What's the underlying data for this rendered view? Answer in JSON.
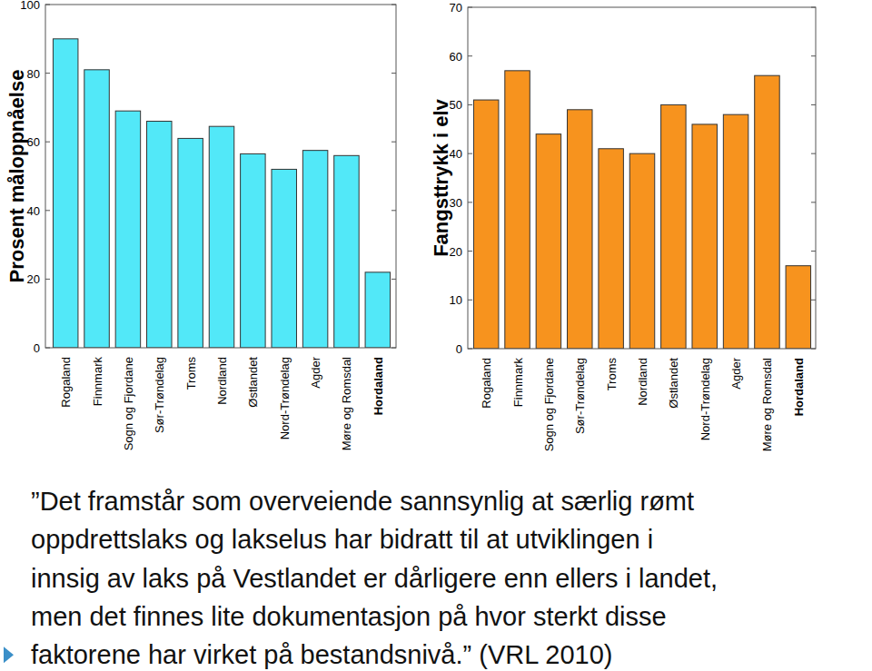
{
  "chart_data": [
    {
      "type": "bar",
      "y_label": "Prosent måloppnåelse",
      "categories": [
        "Rogaland",
        "Finnmark",
        "Sogn og Fjordane",
        "Sør-Trøndelag",
        "Troms",
        "Nordland",
        "Østlandet",
        "Nord-Trøndelag",
        "Agder",
        "Møre og Romsdal",
        "Hordaland"
      ],
      "values": [
        90,
        81,
        69,
        66,
        61,
        64.5,
        56.5,
        52,
        57.5,
        56,
        22
      ],
      "color": "#52e8f8",
      "ylim": [
        0,
        100
      ],
      "yticks": [
        0,
        20,
        40,
        60,
        80,
        100
      ],
      "grid": false
    },
    {
      "type": "bar",
      "y_label": "Fangsttrykk i elv",
      "categories": [
        "Rogaland",
        "Finnmark",
        "Sogn og Fjordane",
        "Sør-Trøndelag",
        "Troms",
        "Nordland",
        "Østlandet",
        "Nord-Trøndelag",
        "Agder",
        "Møre og Romsdal",
        "Hordaland"
      ],
      "values": [
        51,
        57,
        44,
        49,
        41,
        40,
        50,
        46,
        48,
        56,
        17
      ],
      "color": "#f7931e",
      "ylim": [
        0,
        70
      ],
      "yticks": [
        0,
        10,
        20,
        30,
        40,
        50,
        60,
        70
      ],
      "grid": false
    }
  ],
  "caption": {
    "lines": [
      "”Det framstår som overveiende sannsynlig at særlig rømt",
      "oppdrettslaks og lakselus har bidratt til at utviklingen i",
      "innsig av laks på Vestlandet er dårligere enn ellers i landet,",
      "men det finnes lite dokumentasjon på hvor sterkt disse",
      "faktorene har virket på bestandsnivå.” (VRL 2010)"
    ]
  }
}
